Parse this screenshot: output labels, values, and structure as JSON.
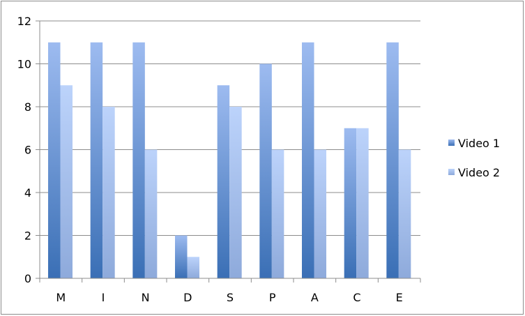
{
  "chart_data": {
    "type": "bar",
    "title": "",
    "xlabel": "",
    "ylabel": "",
    "categories": [
      "M",
      "I",
      "N",
      "D",
      "S",
      "P",
      "A",
      "C",
      "E"
    ],
    "series": [
      {
        "name": "Video 1",
        "values": [
          11,
          11,
          11,
          2,
          9,
          10,
          11,
          7,
          11
        ],
        "color_top": "#9dbbf0",
        "color_bottom": "#3a6fb5"
      },
      {
        "name": "Video 2",
        "values": [
          9,
          8,
          6,
          1,
          8,
          6,
          6,
          7,
          6
        ],
        "color_top": "#bcd3fb",
        "color_bottom": "#8eaadb"
      }
    ],
    "ylim": [
      0,
      12
    ],
    "yticks": [
      0,
      2,
      4,
      6,
      8,
      10,
      12
    ],
    "grid": true,
    "legend": "right"
  }
}
